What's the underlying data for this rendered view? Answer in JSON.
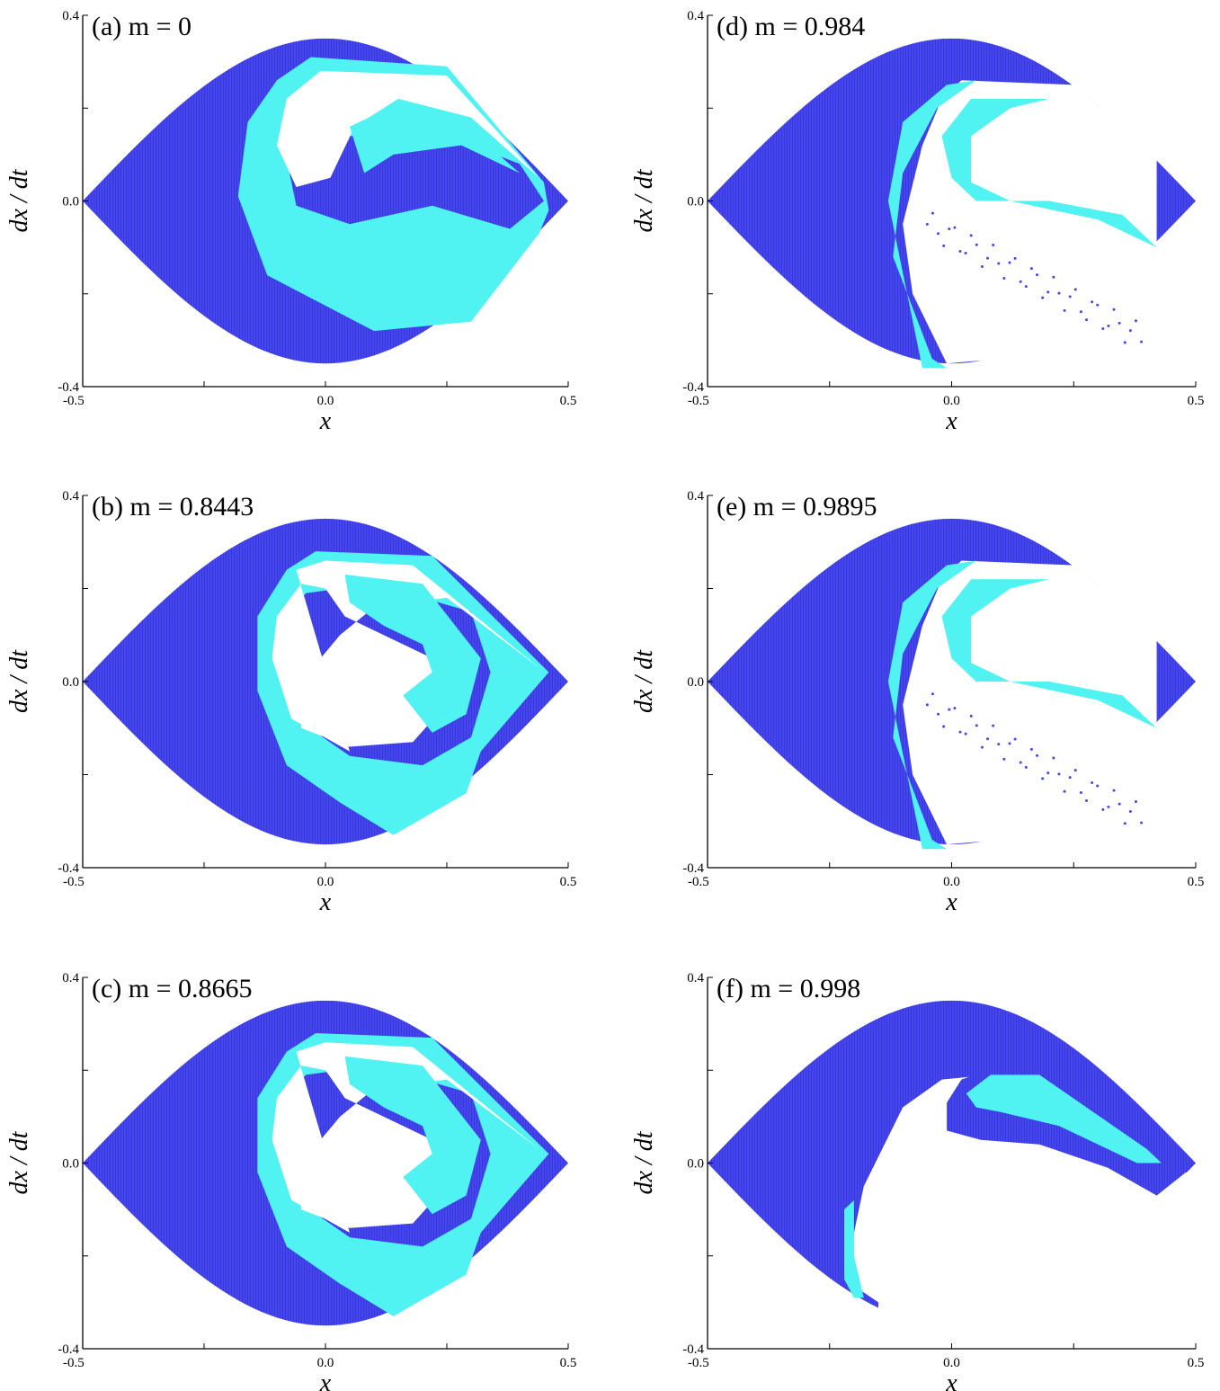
{
  "colors": {
    "basin_dark": "#4646f0",
    "basin_light": "#50f2f2",
    "background": "#ffffff",
    "axis": "#000000"
  },
  "chart_data": [
    {
      "type": "heatmap",
      "panel_label": "(a) m = 0",
      "m": 0,
      "xlabel": "x",
      "ylabel": "dx / dt",
      "xlim": [
        -0.5,
        0.5
      ],
      "ylim": [
        -0.4,
        0.4
      ],
      "xticks": [
        "-0.5",
        "0.0",
        "0.5"
      ],
      "yticks": [
        "-0.4",
        "0.0",
        "0.4"
      ],
      "series": [
        {
          "name": "",
          "color": "#4646f0"
        },
        {
          "name": "",
          "color": "#50f2f2"
        }
      ],
      "grid": false
    },
    {
      "type": "heatmap",
      "panel_label": "(b) m = 0.8443",
      "m": 0.8443,
      "xlabel": "x",
      "ylabel": "dx / dt",
      "xlim": [
        -0.5,
        0.5
      ],
      "ylim": [
        -0.4,
        0.4
      ],
      "xticks": [
        "-0.5",
        "0.0",
        "0.5"
      ],
      "yticks": [
        "-0.4",
        "0.0",
        "0.4"
      ],
      "series": [
        {
          "name": "",
          "color": "#4646f0"
        },
        {
          "name": "",
          "color": "#50f2f2"
        }
      ],
      "grid": false
    },
    {
      "type": "heatmap",
      "panel_label": "(c) m = 0.8665",
      "m": 0.8665,
      "xlabel": "x",
      "ylabel": "dx / dt",
      "xlim": [
        -0.5,
        0.5
      ],
      "ylim": [
        -0.4,
        0.4
      ],
      "xticks": [
        "-0.5",
        "0.0",
        "0.5"
      ],
      "yticks": [
        "-0.4",
        "0.0",
        "0.4"
      ],
      "series": [
        {
          "name": "",
          "color": "#4646f0"
        },
        {
          "name": "",
          "color": "#50f2f2"
        }
      ],
      "grid": false
    },
    {
      "type": "heatmap",
      "panel_label": "(d) m = 0.984",
      "m": 0.984,
      "xlabel": "x",
      "ylabel": "dx / dt",
      "xlim": [
        -0.5,
        0.5
      ],
      "ylim": [
        -0.4,
        0.4
      ],
      "xticks": [
        "-0.5",
        "0.0",
        "0.5"
      ],
      "yticks": [
        "-0.4",
        "0.0",
        "0.4"
      ],
      "series": [
        {
          "name": "",
          "color": "#4646f0"
        },
        {
          "name": "",
          "color": "#50f2f2"
        }
      ],
      "grid": false
    },
    {
      "type": "heatmap",
      "panel_label": "(e) m = 0.9895",
      "m": 0.9895,
      "xlabel": "x",
      "ylabel": "dx / dt",
      "xlim": [
        -0.5,
        0.5
      ],
      "ylim": [
        -0.4,
        0.4
      ],
      "xticks": [
        "-0.5",
        "0.0",
        "0.5"
      ],
      "yticks": [
        "-0.4",
        "0.0",
        "0.4"
      ],
      "series": [
        {
          "name": "",
          "color": "#4646f0"
        },
        {
          "name": "",
          "color": "#50f2f2"
        }
      ],
      "grid": false
    },
    {
      "type": "heatmap",
      "panel_label": "(f) m = 0.998",
      "m": 0.998,
      "xlabel": "x",
      "ylabel": "dx / dt",
      "xlim": [
        -0.5,
        0.5
      ],
      "ylim": [
        -0.4,
        0.4
      ],
      "xticks": [
        "-0.5",
        "0.0",
        "0.5"
      ],
      "yticks": [
        "-0.4",
        "0.0",
        "0.4"
      ],
      "series": [
        {
          "name": "",
          "color": "#4646f0"
        },
        {
          "name": "",
          "color": "#50f2f2"
        }
      ],
      "grid": false
    }
  ]
}
